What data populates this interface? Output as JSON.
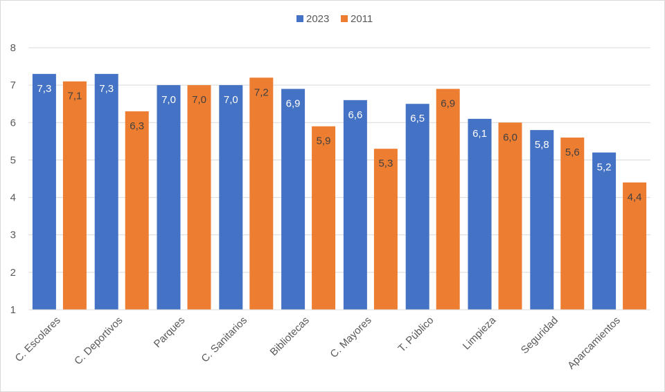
{
  "chart_data": {
    "type": "bar",
    "categories": [
      "C. Escolares",
      "C. Deportivos",
      "Parques",
      "C. Sanitarios",
      "Bibliotecas",
      "C. Mayores",
      "T. Público",
      "Limpieza",
      "Seguridad",
      "Aparcamientos"
    ],
    "series": [
      {
        "name": "2023",
        "color": "#4472C4",
        "values": [
          7.3,
          7.3,
          7.0,
          7.0,
          6.9,
          6.6,
          6.5,
          6.1,
          5.8,
          5.2
        ],
        "labels": [
          "7,3",
          "7,3",
          "7,0",
          "7,0",
          "6,9",
          "6,6",
          "6,5",
          "6,1",
          "5,8",
          "5,2"
        ],
        "label_color": "#ffffff"
      },
      {
        "name": "2011",
        "color": "#ED7D31",
        "values": [
          7.1,
          6.3,
          7.0,
          7.2,
          5.9,
          5.3,
          6.9,
          6.0,
          5.6,
          4.4
        ],
        "labels": [
          "7,1",
          "6,3",
          "7,0",
          "7,2",
          "5,9",
          "5,3",
          "6,9",
          "6,0",
          "5,6",
          "4,4"
        ],
        "label_color": "#404040"
      }
    ],
    "ylim": [
      1,
      8
    ],
    "yticks": [
      "1",
      "2",
      "3",
      "4",
      "5",
      "6",
      "7",
      "8"
    ],
    "grid": true,
    "legend_position": "top"
  }
}
